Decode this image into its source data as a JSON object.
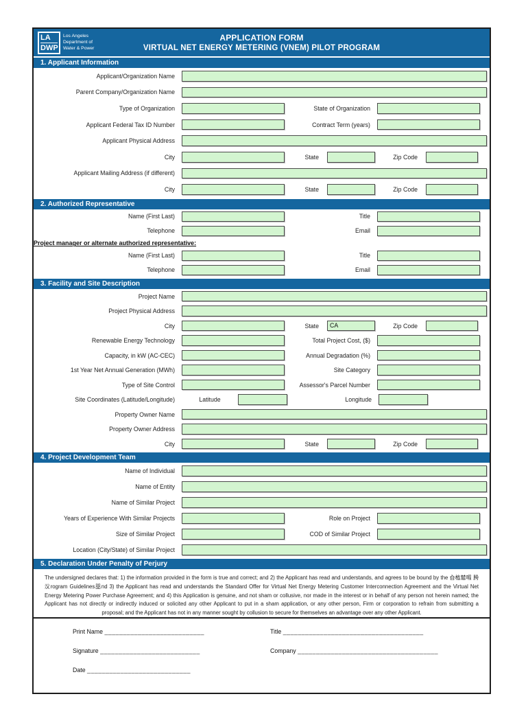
{
  "colors": {
    "band_blue": "#15669f",
    "input_green": "#d3f5d0",
    "input_border": "#4a4a4a",
    "form_border": "#1c1c1c"
  },
  "header": {
    "logo": {
      "line1": "LA",
      "line2": "DWP",
      "org_lines": [
        "Los Angeles",
        "Department of",
        "Water & Power"
      ]
    },
    "title_line1": "APPLICATION FORM",
    "title_line2": "VIRTUAL NET ENERGY METERING (VNEM) PILOT PROGRAM"
  },
  "sections": [
    {
      "title": "1. Applicant Information",
      "rows": [
        {
          "type": "full",
          "label": "Applicant/Organization Name",
          "value": ""
        },
        {
          "type": "full",
          "label": "Parent Company/Organization Name",
          "value": ""
        },
        {
          "type": "two",
          "left_label": "Type of Organization",
          "left_value": "",
          "right_label": "State of Organization",
          "right_value": ""
        },
        {
          "type": "two",
          "left_label": "Applicant Federal Tax ID Number",
          "left_value": "",
          "right_label": "Contract Term (years)",
          "right_value": ""
        },
        {
          "type": "full",
          "label": "Applicant Physical Address",
          "value": ""
        },
        {
          "type": "csz",
          "city_label": "City",
          "state_label": "State",
          "zip_label": "Zip Code",
          "city_value": "",
          "state_value": "",
          "zip_value": ""
        },
        {
          "type": "full",
          "label": "Applicant Mailing Address (if different)",
          "value": ""
        },
        {
          "type": "csz",
          "city_label": "City",
          "state_label": "State",
          "zip_label": "Zip Code",
          "city_value": "",
          "state_value": "",
          "zip_value": ""
        }
      ]
    },
    {
      "title": "2. Authorized Representative",
      "rows": [
        {
          "type": "two",
          "left_label": "Name (First Last)",
          "left_value": "",
          "right_label": "Title",
          "right_value": ""
        },
        {
          "type": "two",
          "left_label": "Telephone",
          "left_value": "",
          "right_label": "Email",
          "right_value": ""
        },
        {
          "type": "center",
          "text": "Project manager or alternate authorized representative:"
        },
        {
          "type": "two",
          "left_label": "Name (First Last)",
          "left_value": "",
          "right_label": "Title",
          "right_value": ""
        },
        {
          "type": "two",
          "left_label": "Telephone",
          "left_value": "",
          "right_label": "Email",
          "right_value": ""
        }
      ]
    },
    {
      "title": "3. Facility and Site Description",
      "rows": [
        {
          "type": "full",
          "label": "Project Name",
          "value": ""
        },
        {
          "type": "full",
          "label": "Project Physical Address",
          "value": ""
        },
        {
          "type": "csz",
          "city_label": "City",
          "state_label": "State",
          "zip_label": "Zip Code",
          "city_value": "",
          "state_value": "CA",
          "zip_value": ""
        },
        {
          "type": "two",
          "left_label": "Renewable Energy Technology",
          "left_value": "",
          "right_label": "Total Project Cost, ($)",
          "right_value": ""
        },
        {
          "type": "two",
          "left_label": "Capacity, in kW (AC-CEC)",
          "left_value": "",
          "right_label": "Annual Degradation (%)",
          "right_value": ""
        },
        {
          "type": "two",
          "left_label": "1st Year Net Annual Generation (MWh)",
          "left_value": "",
          "right_label": "Site Category",
          "right_value": ""
        },
        {
          "type": "two",
          "left_label": "Type of Site Control",
          "left_value": "",
          "right_label": "Assessor's Parcel Number",
          "right_value": ""
        },
        {
          "type": "coords",
          "label": "Site Coordinates (Latitude/Longitude)",
          "lat_label": "Latitude",
          "lat_value": "",
          "lon_label": "Longitude",
          "lon_value": ""
        },
        {
          "type": "full",
          "label": "Property Owner Name",
          "value": ""
        },
        {
          "type": "full",
          "label": "Property Owner Address",
          "value": ""
        },
        {
          "type": "csz",
          "city_label": "City",
          "state_label": "State",
          "zip_label": "Zip Code",
          "city_value": "",
          "state_value": "",
          "zip_value": ""
        }
      ]
    },
    {
      "title": "4. Project Development Team",
      "rows": [
        {
          "type": "full",
          "label": "Name of Individual",
          "value": ""
        },
        {
          "type": "full",
          "label": "Name of Entity",
          "value": ""
        },
        {
          "type": "full",
          "label": "Name of Similar Project",
          "value": ""
        },
        {
          "type": "two",
          "left_label": "Years of Experience With Similar Projects",
          "left_value": "",
          "right_label": "Role on Project",
          "right_value": ""
        },
        {
          "type": "two",
          "left_label": "Size of Similar Project",
          "left_value": "",
          "right_label": "COD of Similar Project",
          "right_value": ""
        },
        {
          "type": "full",
          "label": "Location (City/State) of Similar Project",
          "value": ""
        }
      ]
    },
    {
      "title": "5. Declaration Under Penalty of Perjury",
      "declaration": "The undersigned declares that: 1) the information provided in the form is true and correct; and 2) the Applicant has read and understands, and agrees to be bound by the 㒲㮐㯄㗇 㬽㳇rogram Guidelines㗊nd 3) the Applicant has read and understands the Standard Offer for Virtual Net Energy Metering Customer Interconnection Agreement and the Virtual Net Energy Metering Power Purchase Agreement; and 4) this Application is genuine, and not sham or collusive, nor made in the interest or in behalf of any person not herein named; the Applicant has not directly or indirectly induced or solicited any other Applicant to put in a sham application, or any other person, Firm or corporation to refrain from submitting a proposal; and the Applicant has not in any manner sought by collusion to secure for themselves an advantage over any other Applicant."
    }
  ],
  "signature": {
    "rows": [
      {
        "left": "Print Name",
        "left_line": "___________________________",
        "right": "Title",
        "right_line": "______________________________________"
      },
      {
        "left": "Signature",
        "left_line": "___________________________",
        "right": "Company",
        "right_line": "______________________________________"
      },
      {
        "left": "Date",
        "left_line": "____________________________",
        "right": "",
        "right_line": ""
      }
    ]
  }
}
